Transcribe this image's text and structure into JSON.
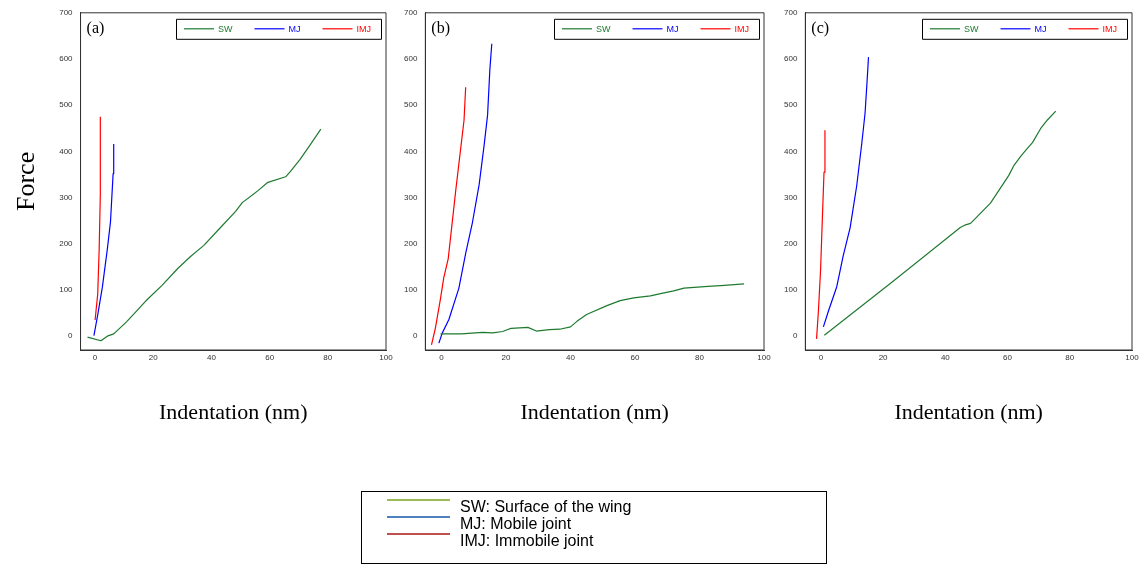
{
  "chart_data": [
    {
      "type": "line",
      "annotations": [
        "(a)"
      ],
      "ylabel": "Force",
      "xlabel": "Indentation (nm)",
      "xlim": [
        -5,
        100
      ],
      "ylim": [
        -30,
        700
      ],
      "xticks": [
        0,
        20,
        40,
        60,
        80,
        100
      ],
      "yticks": [
        0,
        100,
        200,
        300,
        400,
        500,
        600,
        700
      ],
      "grid": false,
      "legend": "top right",
      "marker": "none",
      "line_style": "solid",
      "series": [
        {
          "name": "SW",
          "color": "#1f7a30",
          "x": [
            -2.6,
            2,
            4.2,
            6.4,
            10.8,
            17.4,
            23,
            28.5,
            32.9,
            37.3,
            42.8,
            48.3,
            50.6,
            56,
            59.4,
            65.5,
            67.1,
            70.4,
            73.7,
            77.6
          ],
          "values": [
            -2,
            -10,
            0,
            5,
            31,
            76,
            110,
            147,
            173,
            196,
            233,
            270,
            289,
            315,
            333,
            345,
            356,
            382,
            412,
            448
          ]
        },
        {
          "name": "MJ",
          "color": "#0000ff",
          "x": [
            -0.4,
            0.9,
            2.5,
            4.2,
            5.3,
            6.2,
            6.4
          ],
          "values": [
            1,
            46,
            106,
            188,
            248,
            352,
            416
          ]
        },
        {
          "name": "IMJ",
          "color": "#ff0000",
          "x": [
            0,
            0.9,
            1.4,
            1.8,
            1.8,
            1.8
          ],
          "values": [
            35,
            91,
            188,
            307,
            390,
            475
          ]
        }
      ]
    },
    {
      "type": "line",
      "annotations": [
        "(b)"
      ],
      "xlabel": "Indentation (nm)",
      "xlim": [
        -5,
        100
      ],
      "ylim": [
        -30,
        700
      ],
      "xticks": [
        0,
        20,
        40,
        60,
        80,
        100
      ],
      "yticks": [
        0,
        100,
        200,
        300,
        400,
        500,
        600,
        700
      ],
      "grid": false,
      "legend": "top right",
      "marker": "none",
      "line_style": "solid",
      "series": [
        {
          "name": "SW",
          "color": "#1f7a30",
          "x": [
            -0.3,
            6.2,
            12.7,
            15.9,
            19,
            21.6,
            26.8,
            29.4,
            33.5,
            36.7,
            40,
            42,
            45,
            51.3,
            55.4,
            59.6,
            64.8,
            67.9,
            72,
            75.2,
            81.5,
            87.7,
            93.8
          ],
          "values": [
            5,
            5,
            8,
            7,
            10,
            17,
            19,
            11,
            14,
            15,
            20,
            32,
            47,
            66,
            77,
            83,
            87,
            92,
            98,
            104,
            107,
            110,
            113
          ]
        },
        {
          "name": "MJ",
          "color": "#0000ff",
          "x": [
            -0.8,
            0.2,
            2.3,
            5.4,
            7.5,
            9.6,
            11.7,
            13.2,
            14.3,
            15,
            15.6
          ],
          "values": [
            -15,
            6,
            36,
            104,
            179,
            246,
            329,
            412,
            479,
            577,
            633
          ]
        },
        {
          "name": "IMJ",
          "color": "#ff0000",
          "x": [
            -3.1,
            -1.9,
            -0.3,
            0.7,
            2.1,
            4.4,
            7,
            7.5
          ],
          "values": [
            -19,
            17,
            81,
            126,
            168,
            314,
            468,
            539
          ]
        }
      ]
    },
    {
      "type": "line",
      "annotations": [
        "(c)"
      ],
      "xlabel": "Indentation (nm)",
      "xlim": [
        -5,
        100
      ],
      "ylim": [
        -30,
        700
      ],
      "xticks": [
        0,
        20,
        40,
        60,
        80,
        100
      ],
      "yticks": [
        0,
        100,
        200,
        300,
        400,
        500,
        600,
        700
      ],
      "grid": false,
      "legend": "top right",
      "marker": "none",
      "line_style": "solid",
      "series": [
        {
          "name": "SW",
          "color": "#1f7a30",
          "x": [
            1.1,
            22.3,
            44.8,
            46.5,
            48.1,
            54.5,
            60.4,
            62,
            64.2,
            66.3,
            68,
            70.6,
            72.8,
            75.5
          ],
          "values": [
            2,
            114,
            235,
            241,
            244,
            288,
            348,
            369,
            389,
            406,
            419,
            449,
            468,
            487
          ]
        },
        {
          "name": "MJ",
          "color": "#0000ff",
          "x": [
            0.8,
            2.4,
            5.1,
            7.2,
            9.4,
            11.5,
            13.1,
            14.2,
            14.9,
            15.3
          ],
          "values": [
            20,
            54,
            107,
            175,
            235,
            325,
            415,
            483,
            558,
            604
          ]
        },
        {
          "name": "IMJ",
          "color": "#ff0000",
          "x": [
            -1.4,
            -0.8,
            -0.1,
            0.4,
            1,
            1.3
          ],
          "values": [
            -6,
            54,
            144,
            242,
            355,
            446
          ]
        }
      ]
    },
    {
      "type": "other",
      "series": [
        {
          "name": "SW: Surface of the wing",
          "color": "#9bbb59"
        },
        {
          "name": "MJ: Mobile joint",
          "color": "#4f81bd"
        },
        {
          "name": "IMJ: Immobile joint",
          "color": "#c0504d"
        }
      ]
    }
  ]
}
